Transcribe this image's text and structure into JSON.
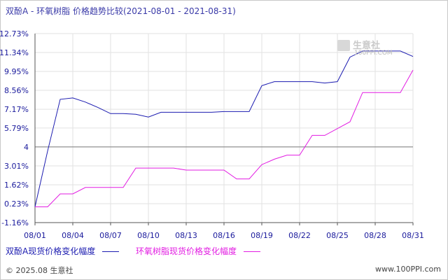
{
  "header": {
    "title": "双酚A - 环氧树脂 价格趋势比较(2021-08-01 - 2021-08-31)"
  },
  "watermark": {
    "logo_text": "生意社",
    "url": "100PPI.COM"
  },
  "footer": {
    "copyright": "© 2025.08 生意社",
    "site": "www.100PPI.com"
  },
  "chart_data": {
    "type": "line",
    "title": "双酚A - 环氧树脂 价格趋势比较(2021-08-01 - 2021-08-31)",
    "xlabel": "",
    "ylabel": "",
    "x_ticks": [
      "08/01",
      "08/04",
      "08/07",
      "08/10",
      "08/13",
      "08/16",
      "08/19",
      "08/22",
      "08/25",
      "08/28",
      "08/31"
    ],
    "y_ticks": [
      "12.73%",
      "11.34%",
      "9.95%",
      "8.56%",
      "7.17%",
      "5.79%",
      "4",
      "3.01%",
      "1.62%",
      "0.23%",
      "-1.16%"
    ],
    "y_tick_values": [
      12.73,
      11.34,
      9.95,
      8.56,
      7.17,
      5.79,
      4.4,
      3.01,
      1.62,
      0.23,
      -1.16
    ],
    "ylim": [
      -1.16,
      12.73
    ],
    "reference_line": 4.4,
    "x_index_range": [
      0,
      30
    ],
    "grid": true,
    "legend_position": "bottom",
    "series": [
      {
        "name": "双酚A现货价格变化幅度",
        "color": "#1b1bb0",
        "x": [
          0,
          1,
          2,
          3,
          4,
          5,
          6,
          7,
          8,
          9,
          10,
          11,
          12,
          13,
          14,
          15,
          16,
          17,
          18,
          19,
          20,
          21,
          22,
          23,
          24,
          25,
          26,
          27,
          28,
          29,
          30
        ],
        "values": [
          0.0,
          4.1,
          7.9,
          8.0,
          7.7,
          7.3,
          6.85,
          6.85,
          6.8,
          6.6,
          6.95,
          6.95,
          6.95,
          6.95,
          6.95,
          7.0,
          7.0,
          7.0,
          8.9,
          9.2,
          9.2,
          9.2,
          9.2,
          9.1,
          9.2,
          11.0,
          11.45,
          11.45,
          11.45,
          11.45,
          11.05
        ]
      },
      {
        "name": "环氧树脂现货价格变化幅度",
        "color": "#e21de2",
        "x": [
          0,
          1,
          2,
          3,
          4,
          5,
          6,
          7,
          8,
          9,
          10,
          11,
          12,
          13,
          14,
          15,
          16,
          17,
          18,
          19,
          20,
          21,
          22,
          23,
          24,
          25,
          26,
          27,
          28,
          29,
          30
        ],
        "values": [
          0.0,
          0.0,
          0.95,
          0.95,
          1.42,
          1.42,
          1.42,
          1.42,
          2.85,
          2.85,
          2.85,
          2.85,
          2.7,
          2.7,
          2.7,
          2.7,
          2.05,
          2.05,
          3.1,
          3.5,
          3.8,
          3.8,
          5.25,
          5.25,
          5.75,
          6.25,
          8.4,
          8.4,
          8.4,
          8.4,
          10.05
        ]
      }
    ]
  }
}
